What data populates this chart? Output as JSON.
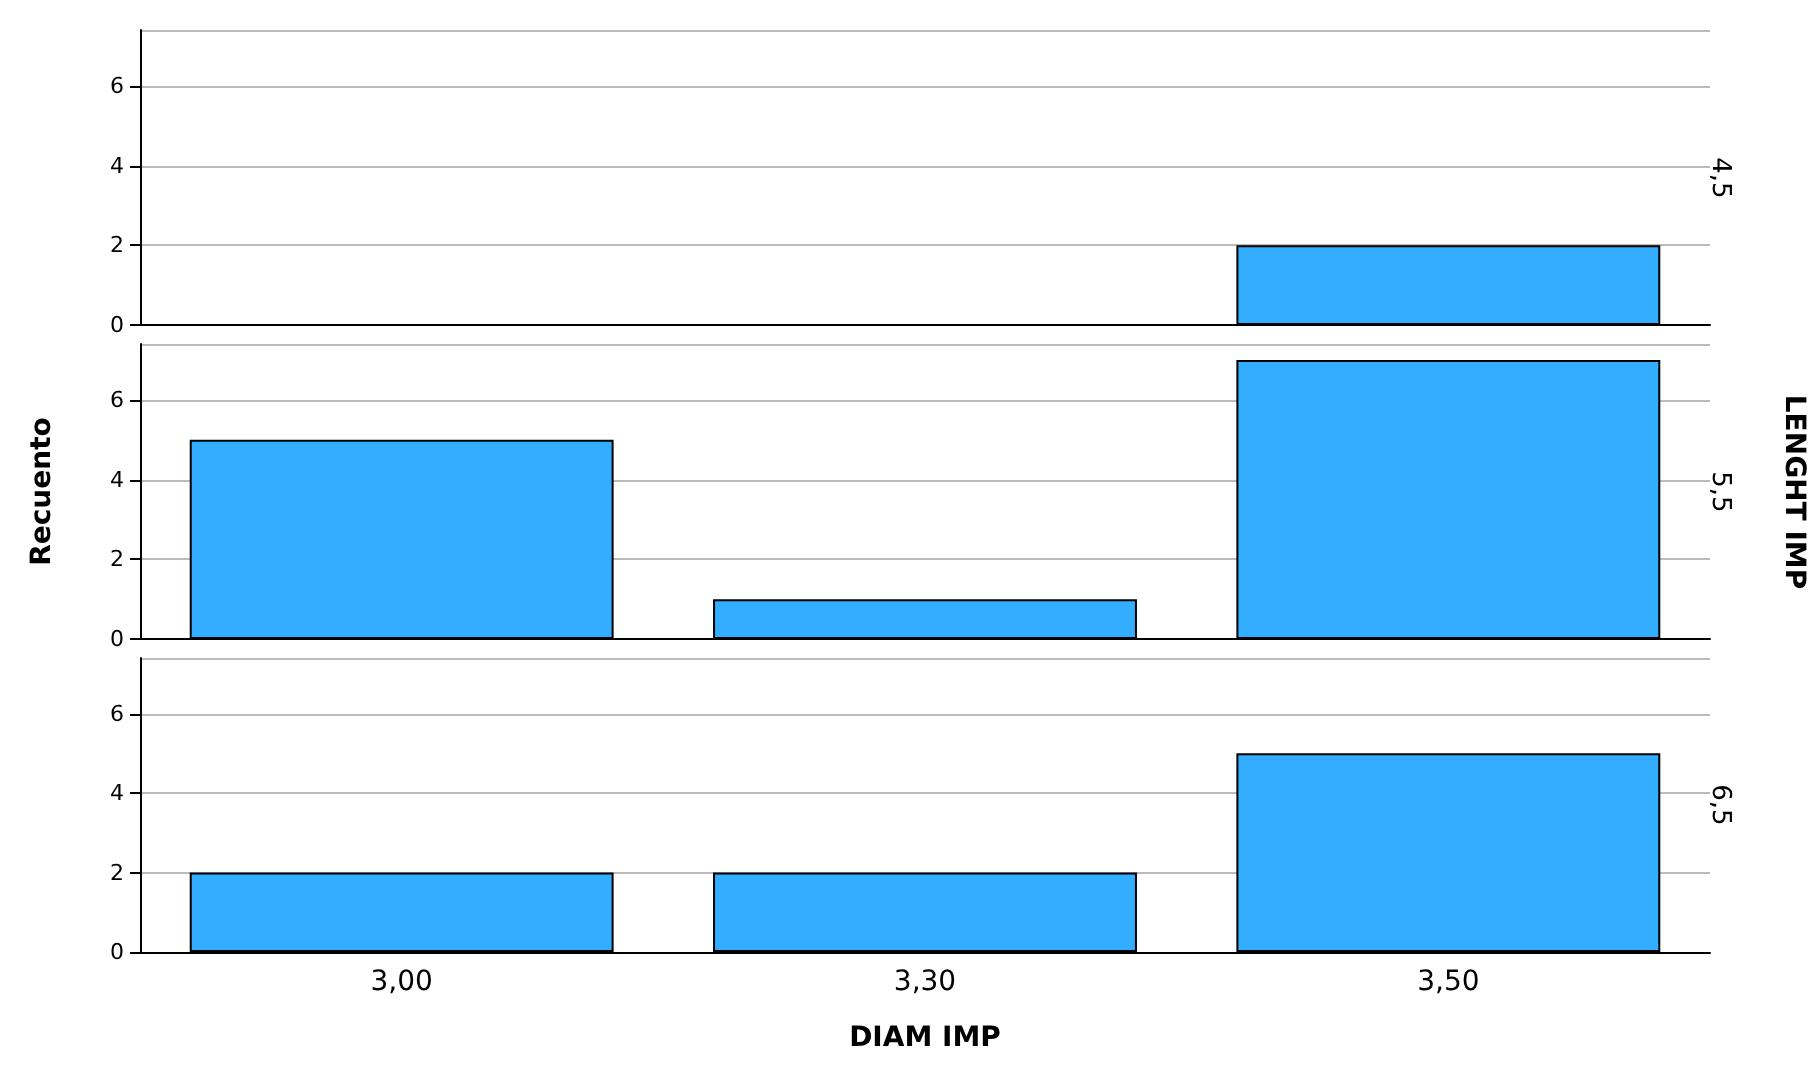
{
  "chart_data": [
    {
      "type": "bar",
      "categories": [
        "3,00",
        "3,30",
        "3,50"
      ],
      "values": [
        0,
        0,
        2
      ],
      "color": "#33adff",
      "ylim": [
        0,
        7.4
      ],
      "yticks": [
        0,
        2,
        4,
        6
      ],
      "grid": "y",
      "tick_labels": "y",
      "y2label": "4,5"
    },
    {
      "type": "bar",
      "categories": [
        "3,00",
        "3,30",
        "3,50"
      ],
      "values": [
        5,
        1,
        7
      ],
      "color": "#33adff",
      "ylim": [
        0,
        7.4
      ],
      "yticks": [
        0,
        2,
        4,
        6
      ],
      "grid": "y",
      "tick_labels": "y",
      "ylabel": "Recuento",
      "y2label": "5,5",
      "annotations": [
        "LENGHT IMP"
      ]
    },
    {
      "type": "bar",
      "categories": [
        "3,00",
        "3,30",
        "3,50"
      ],
      "values": [
        2,
        2,
        5
      ],
      "color": "#33adff",
      "ylim": [
        0,
        7.4
      ],
      "yticks": [
        0,
        2,
        4,
        6
      ],
      "grid": "y",
      "xlabel": "DIAM IMP",
      "y2label": "6,5"
    }
  ]
}
